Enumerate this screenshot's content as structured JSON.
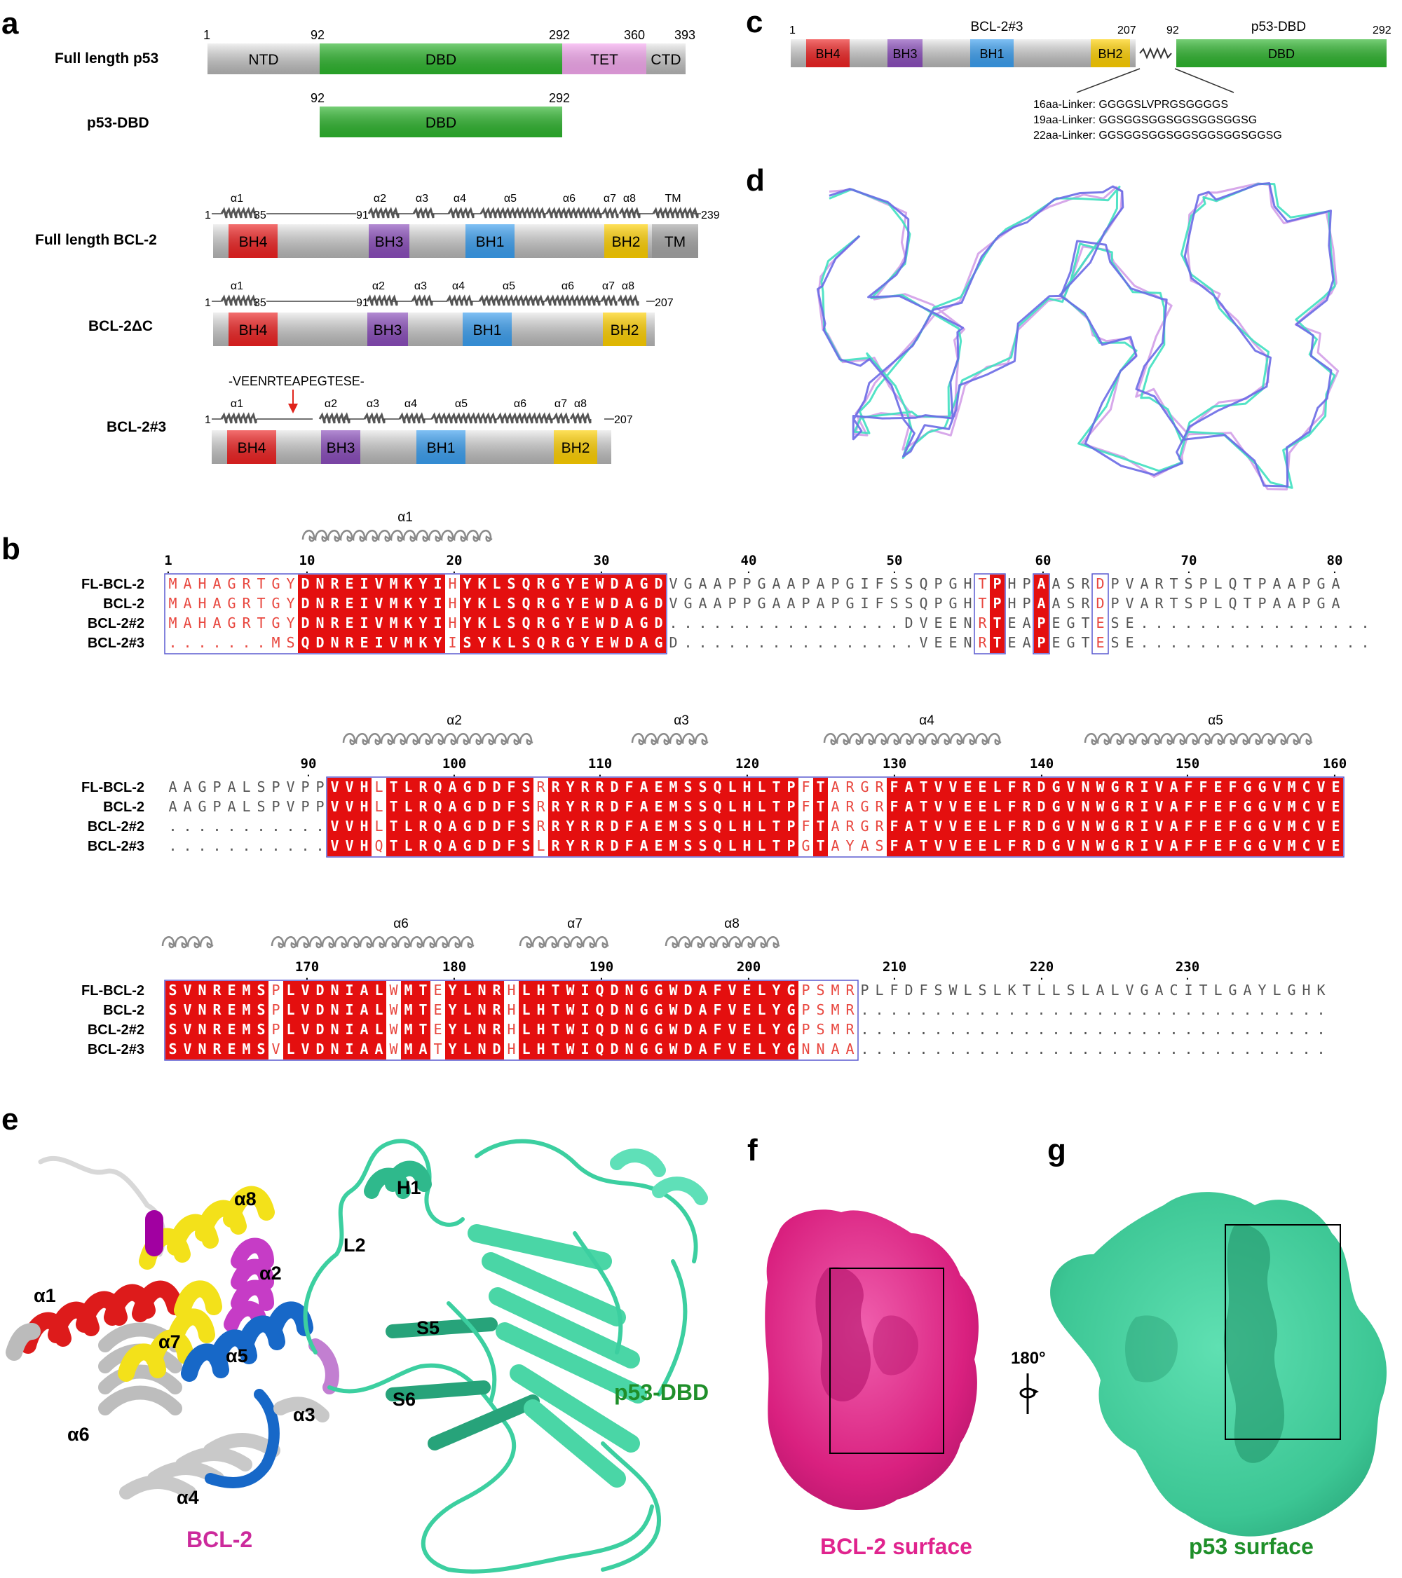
{
  "panels": {
    "a": "a",
    "b": "b",
    "c": "c",
    "d": "d",
    "e": "e",
    "f": "f",
    "g": "g"
  },
  "panel_a": {
    "constructs": [
      {
        "name": "Full length p53",
        "numbers": [
          "1",
          "92",
          "292",
          "360",
          "393"
        ],
        "domains": [
          {
            "label": "NTD",
            "color": "#c9c9c9"
          },
          {
            "label": "DBD",
            "color": "#2db52d"
          },
          {
            "label": "TET",
            "color": "#f5a8ef"
          },
          {
            "label": "CTD",
            "color": "#c9c9c9"
          }
        ]
      },
      {
        "name": "p53-DBD",
        "numbers": [
          "92",
          "292"
        ],
        "domains": [
          {
            "label": "DBD",
            "color": "#2db52d"
          }
        ]
      },
      {
        "name": "Full length BCL-2",
        "helices": [
          "α1",
          "α2",
          "α3",
          "α4",
          "α5",
          "α6",
          "α7",
          "α8",
          "TM"
        ],
        "numbers": [
          "1",
          "35",
          "91",
          "239"
        ],
        "domains": [
          {
            "label": "BH4",
            "color": "#ee2222"
          },
          {
            "label": "BH3",
            "color": "#8a4dbb"
          },
          {
            "label": "BH1",
            "color": "#3b9ff0"
          },
          {
            "label": "BH2",
            "color": "#ffd000"
          },
          {
            "label": "TM",
            "color": "#a6a6a6"
          }
        ]
      },
      {
        "name": "BCL-2ΔC",
        "helices": [
          "α1",
          "α2",
          "α3",
          "α4",
          "α5",
          "α6",
          "α7",
          "α8"
        ],
        "numbers": [
          "1",
          "35",
          "91",
          "207"
        ],
        "domains": [
          {
            "label": "BH4",
            "color": "#ee2222"
          },
          {
            "label": "BH3",
            "color": "#8a4dbb"
          },
          {
            "label": "BH1",
            "color": "#3b9ff0"
          },
          {
            "label": "BH2",
            "color": "#ffd000"
          }
        ]
      },
      {
        "name": "BCL-2#3",
        "insert": "-VEENRTEAPEGTESE-",
        "helices": [
          "α1",
          "α2",
          "α3",
          "α4",
          "α5",
          "α6",
          "α7",
          "α8"
        ],
        "numbers": [
          "1",
          "207"
        ],
        "domains": [
          {
            "label": "BH4",
            "color": "#ee2222"
          },
          {
            "label": "BH3",
            "color": "#8a4dbb"
          },
          {
            "label": "BH1",
            "color": "#3b9ff0"
          },
          {
            "label": "BH2",
            "color": "#ffd000"
          }
        ]
      }
    ]
  },
  "panel_b": {
    "blocks": [
      {
        "helices": [
          {
            "label": "α1"
          }
        ],
        "ruler": [
          "1",
          "10",
          "20",
          "30",
          "40",
          "50",
          "60",
          "70",
          "80"
        ],
        "rows": [
          {
            "name": "FL-BCL-2",
            "seq": "MAHAGRTGYDNREIVMKYIHYKLSQRGYEWDAGDVGAAPPGAAPAPGIFSSQPGHTPHPAASRDPVARTSPLQTPAAPGA"
          },
          {
            "name": "BCL-2",
            "seq": "MAHAGRTGYDNREIVMKYIHYKLSQRGYEWDAGDVGAAPPGAAPAPGIFSSQPGHTPHPAASRDPVARTSPLQTPAAPGA"
          },
          {
            "name": "BCL-2#2",
            "seq": "MAHAGRTGYDNREIVMKYIHYKLSQRGYEWDAGD................DVEENRTEAPEGTESE................"
          },
          {
            "name": "BCL-2#3",
            "seq": ".......MSQDNREIVMKYISYKLSQRGYEWDAGD................VEENRTEAPEGTESE................"
          }
        ]
      },
      {
        "helices": [
          {
            "label": "α2"
          },
          {
            "label": "α3"
          },
          {
            "label": "α4"
          },
          {
            "label": "α5"
          }
        ],
        "ruler": [
          "90",
          "100",
          "110",
          "120",
          "130",
          "140",
          "150",
          "160"
        ],
        "rows": [
          {
            "name": "FL-BCL-2",
            "seq": "AAGPALSPVPPVVHLTLRQAGDDFSRRYRRDFAEMSSQLHLTPFTARGRFATVVEELFRDGVNWGRIVAFFEFGGVMCVE"
          },
          {
            "name": "BCL-2",
            "seq": "AAGPALSPVPPVVHLTLRQAGDDFSRRYRRDFAEMSSQLHLTPFTARGRFATVVEELFRDGVNWGRIVAFFEFGGVMCVE"
          },
          {
            "name": "BCL-2#2",
            "seq": "...........VVHLTLRQAGDDFSRRYRRDFAEMSSQLHLTPFTARGRFATVVEELFRDGVNWGRIVAFFEFGGVMCVE"
          },
          {
            "name": "BCL-2#3",
            "seq": "...........VVHQTLRQAGDDFSLRYRRDFAEMSSQLHLTPGTAYASFATVVEELFRDGVNWGRIVAFFEFGGVMCVE"
          }
        ]
      },
      {
        "helices": [
          {
            "label": ""
          },
          {
            "label": "α6"
          },
          {
            "label": "α7"
          },
          {
            "label": "α8"
          }
        ],
        "ruler": [
          "170",
          "180",
          "190",
          "200",
          "210",
          "220",
          "230"
        ],
        "rows": [
          {
            "name": "FL-BCL-2",
            "seq": "SVNREMSPLVDNIALWMTEYLNRHLHTWIQDNGGWDAFVELYGPSMRPLFDFSWLSLKTLLSLALVGACITLGAYLGHK"
          },
          {
            "name": "BCL-2",
            "seq": "SVNREMSPLVDNIALWMTEYLNRHLHTWIQDNGGWDAFVELYGPSMR................................"
          },
          {
            "name": "BCL-2#2",
            "seq": "SVNREMSPLVDNIALWMTEYLNRHLHTWIQDNGGWDAFVELYGPSMR................................"
          },
          {
            "name": "BCL-2#3",
            "seq": "SVNREMSVLVDNIAAWMATYLNDHLHTWIQDNGGWDAFVELYGNNAA................................"
          }
        ]
      }
    ]
  },
  "panel_c": {
    "left_title": "BCL-2#3",
    "right_title": "p53-DBD",
    "left_numbers": [
      "1",
      "207"
    ],
    "right_numbers": [
      "92",
      "292"
    ],
    "domains": [
      {
        "label": "BH4",
        "color": "#ee2222"
      },
      {
        "label": "BH3",
        "color": "#8a4dbb"
      },
      {
        "label": "BH1",
        "color": "#3b9ff0"
      },
      {
        "label": "BH2",
        "color": "#ffd000"
      },
      {
        "label": "DBD",
        "color": "#2db52d"
      }
    ],
    "linkers": [
      "16aa-Linker: GGGGSLVPRGSGGGGS",
      "19aa-Linker: GGSGGSGGSGGSGGSGGSG",
      "22aa-Linker: GGSGGSGGSGGSGGSGGSGGSG"
    ]
  },
  "panel_e": {
    "helix_labels": [
      "α8",
      "α1",
      "α2",
      "α7",
      "α5",
      "α6",
      "α3",
      "α4"
    ],
    "p53_labels": [
      "H1",
      "L2",
      "S5",
      "S6"
    ],
    "bcl2": "BCL-2",
    "p53": "p53-DBD",
    "colors": {
      "bcl2": "#cc2a9c",
      "p53": "#1f8f2a",
      "p53_ribbon": "#3ccfa0"
    }
  },
  "panel_f": {
    "caption": "BCL-2 surface",
    "rotation": "180°",
    "color": "#e0248e"
  },
  "panel_g": {
    "caption": "p53 surface",
    "color": "#40c898"
  }
}
